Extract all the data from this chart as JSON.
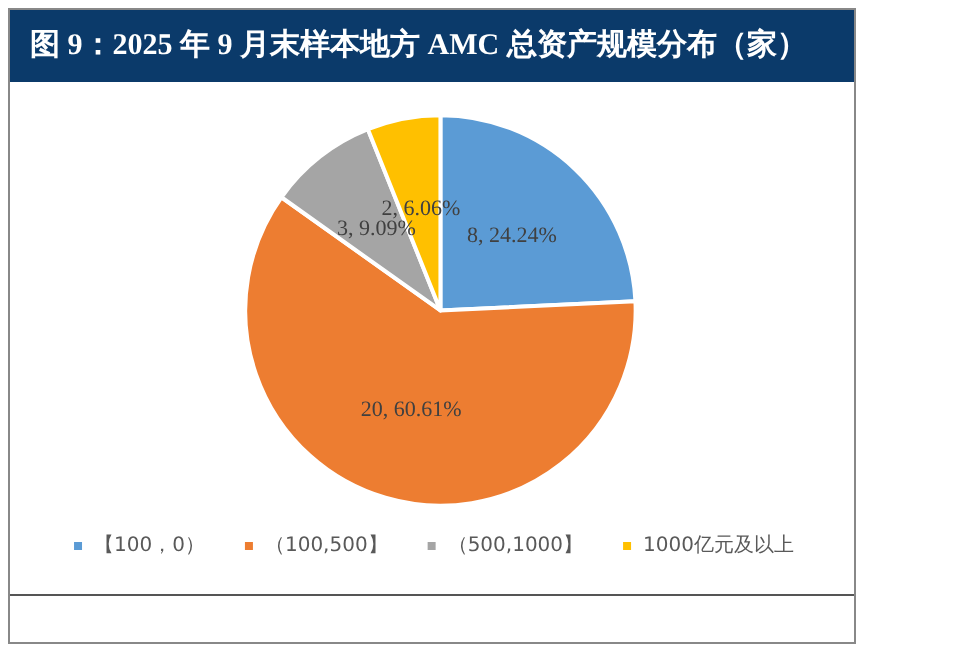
{
  "chart_data": {
    "type": "pie",
    "title": "图 9：2025 年 9 月末样本地方 AMC 总资产规模分布（家）",
    "categories": [
      "【100，0）",
      "（100,500】",
      "（500,1000】",
      "1000亿元及以上"
    ],
    "values": [
      8,
      20,
      3,
      2
    ],
    "colors": [
      "#5b9bd5",
      "#ed7d31",
      "#a5a5a5",
      "#ffc000"
    ],
    "value_labels": [
      "8, 24.24%",
      "20, 60.61%",
      "3, 9.09%",
      "2, 6.06%"
    ],
    "legend": "bottom"
  }
}
